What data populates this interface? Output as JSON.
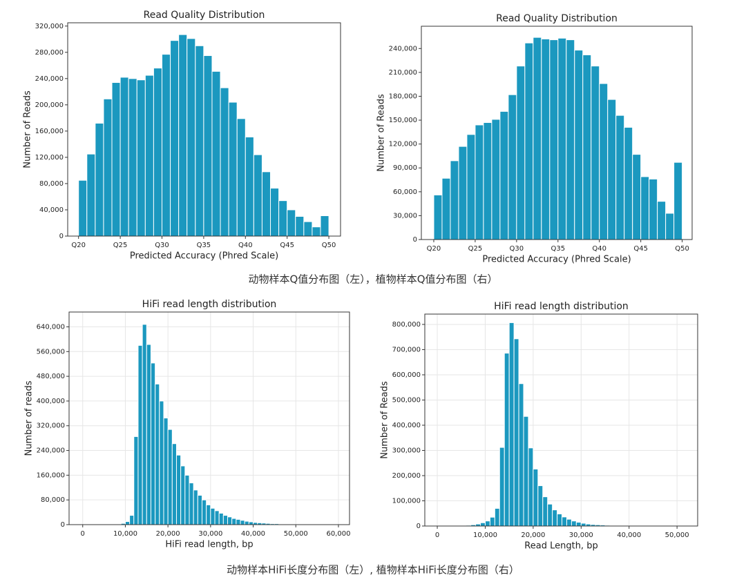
{
  "chart_data": [
    {
      "type": "histogram",
      "title": "Read Quality Distribution",
      "xlabel": "Predicted Accuracy (Phred Scale)",
      "ylabel": "Number of Reads",
      "bins": [
        20,
        21,
        22,
        23,
        24,
        25,
        26,
        27,
        28,
        29,
        30,
        31,
        32,
        33,
        34,
        35,
        36,
        37,
        38,
        39,
        40,
        41,
        42,
        43,
        44,
        45,
        46,
        47,
        48,
        49,
        50
      ],
      "counts": [
        85000,
        125000,
        172000,
        209000,
        234000,
        242000,
        240000,
        238000,
        245000,
        256000,
        277000,
        298000,
        307000,
        301000,
        290000,
        275000,
        251000,
        226000,
        204000,
        179000,
        151000,
        124000,
        98000,
        73000,
        54000,
        40000,
        30000,
        22000,
        14000,
        31000
      ],
      "color": "#1b98bf",
      "grid": false,
      "xlim": [
        18.7,
        51.4
      ],
      "ylim": [
        0,
        325000
      ],
      "xticks": [
        {
          "value": 20,
          "label": "Q20"
        },
        {
          "value": 25,
          "label": "Q25"
        },
        {
          "value": 30,
          "label": "Q30"
        },
        {
          "value": 35,
          "label": "Q35"
        },
        {
          "value": 40,
          "label": "Q40"
        },
        {
          "value": 45,
          "label": "Q45"
        },
        {
          "value": 50,
          "label": "Q50"
        }
      ],
      "yticks": [
        0,
        {
          "value": 40000,
          "label": "40,000"
        },
        {
          "value": 80000,
          "label": "80,000"
        },
        {
          "value": 120000,
          "label": "120,000"
        },
        {
          "value": 160000,
          "label": "160,000"
        },
        {
          "value": 200000,
          "label": "200,000"
        },
        {
          "value": 240000,
          "label": "240,000"
        },
        {
          "value": 280000,
          "label": "280,000"
        },
        {
          "value": 320000,
          "label": "320,000"
        }
      ]
    },
    {
      "type": "histogram",
      "title": "Read Quality Distribution",
      "xlabel": "Predicted Accuracy (Phred Scale)",
      "ylabel": "Number of Reads",
      "bins": [
        20,
        21,
        22,
        23,
        24,
        25,
        26,
        27,
        28,
        29,
        30,
        31,
        32,
        33,
        34,
        35,
        36,
        37,
        38,
        39,
        40,
        41,
        42,
        43,
        44,
        45,
        46,
        47,
        48,
        49,
        50
      ],
      "counts": [
        56000,
        77000,
        99000,
        117000,
        132000,
        144000,
        147000,
        151000,
        161000,
        182000,
        218000,
        247000,
        254000,
        252000,
        251000,
        253000,
        251000,
        238000,
        232000,
        218000,
        196000,
        176000,
        156000,
        141000,
        107000,
        79000,
        76000,
        48000,
        33000,
        97000
      ],
      "color": "#1b98bf",
      "grid": false,
      "xlim": [
        18.5,
        51.2
      ],
      "ylim": [
        0,
        268000
      ],
      "xticks": [
        {
          "value": 20,
          "label": "Q20"
        },
        {
          "value": 25,
          "label": "Q25"
        },
        {
          "value": 30,
          "label": "Q30"
        },
        {
          "value": 35,
          "label": "Q35"
        },
        {
          "value": 40,
          "label": "Q40"
        },
        {
          "value": 45,
          "label": "Q45"
        },
        {
          "value": 50,
          "label": "Q50"
        }
      ],
      "yticks": [
        0,
        {
          "value": 30000,
          "label": "30,000"
        },
        {
          "value": 60000,
          "label": "60,000"
        },
        {
          "value": 90000,
          "label": "90,000"
        },
        {
          "value": 120000,
          "label": "120,000"
        },
        {
          "value": 150000,
          "label": "150,000"
        },
        {
          "value": 180000,
          "label": "180,000"
        },
        {
          "value": 210000,
          "label": "210,000"
        },
        {
          "value": 240000,
          "label": "240,000"
        }
      ]
    },
    {
      "type": "histogram",
      "title": "HiFi read length distribution",
      "xlabel": "HiFi read length, bp",
      "ylabel": "Number of reads",
      "bins": [
        0,
        1000,
        2000,
        3000,
        4000,
        5000,
        6000,
        7000,
        8000,
        9000,
        10000,
        11000,
        12000,
        13000,
        14000,
        15000,
        16000,
        17000,
        18000,
        19000,
        20000,
        21000,
        22000,
        23000,
        24000,
        25000,
        26000,
        27000,
        28000,
        29000,
        30000,
        31000,
        32000,
        33000,
        34000,
        35000,
        36000,
        37000,
        38000,
        39000,
        40000,
        41000,
        42000,
        43000,
        44000,
        45000,
        46000,
        47000,
        48000,
        49000,
        50000,
        51000,
        52000,
        53000,
        54000,
        55000,
        56000,
        57000,
        58000,
        59000,
        60000
      ],
      "counts": [
        0,
        0,
        0,
        0,
        0,
        1000,
        1000,
        1000,
        2000,
        4000,
        10000,
        30000,
        285000,
        580000,
        648000,
        583000,
        523000,
        455000,
        400000,
        345000,
        308000,
        262000,
        225000,
        190000,
        160000,
        135000,
        112000,
        95000,
        80000,
        64000,
        53000,
        45000,
        37000,
        30000,
        25000,
        20000,
        17000,
        14000,
        11000,
        9000,
        7000,
        6000,
        5000,
        4000,
        3000,
        3000,
        2000,
        2000,
        1000,
        1000,
        1000,
        1000,
        0,
        0,
        0,
        0,
        0,
        0,
        0,
        0
      ],
      "color": "#1b98bf",
      "grid": true,
      "xlim": [
        -3200,
        62600
      ],
      "ylim": [
        0,
        688000
      ],
      "xticks": [
        0,
        {
          "value": 10000,
          "label": "10,000"
        },
        {
          "value": 20000,
          "label": "20,000"
        },
        {
          "value": 30000,
          "label": "30,000"
        },
        {
          "value": 40000,
          "label": "40,000"
        },
        {
          "value": 50000,
          "label": "50,000"
        },
        {
          "value": 60000,
          "label": "60,000"
        }
      ],
      "yticks": [
        0,
        {
          "value": 80000,
          "label": "80,000"
        },
        {
          "value": 160000,
          "label": "160,000"
        },
        {
          "value": 240000,
          "label": "240,000"
        },
        {
          "value": 320000,
          "label": "320,000"
        },
        {
          "value": 400000,
          "label": "400,000"
        },
        {
          "value": 480000,
          "label": "480,000"
        },
        {
          "value": 560000,
          "label": "560,000"
        },
        {
          "value": 640000,
          "label": "640,000"
        }
      ]
    },
    {
      "type": "histogram",
      "title": "HiFi read length distribution",
      "xlabel": "Read Length, bp",
      "ylabel": "Number of Reads",
      "bins": [
        0,
        1000,
        2000,
        3000,
        4000,
        5000,
        6000,
        7000,
        8000,
        9000,
        10000,
        11000,
        12000,
        13000,
        14000,
        15000,
        16000,
        17000,
        18000,
        19000,
        20000,
        21000,
        22000,
        23000,
        24000,
        25000,
        26000,
        27000,
        28000,
        29000,
        30000,
        31000,
        32000,
        33000,
        34000,
        35000,
        36000,
        37000,
        38000,
        39000,
        40000,
        41000,
        42000,
        43000,
        44000,
        45000,
        46000,
        47000,
        48000,
        49000,
        50000
      ],
      "counts": [
        0,
        0,
        0,
        0,
        1000,
        2000,
        3000,
        5000,
        8000,
        13000,
        20000,
        35000,
        70000,
        312000,
        686000,
        807000,
        743000,
        565000,
        435000,
        310000,
        226000,
        160000,
        116000,
        87000,
        64000,
        48000,
        36000,
        27000,
        20000,
        15000,
        11000,
        8000,
        6000,
        5000,
        4000,
        3000,
        2000,
        2000,
        1000,
        1000,
        1000,
        0,
        0,
        0,
        0,
        0,
        0,
        0,
        0,
        0
      ],
      "color": "#1b98bf",
      "grid": true,
      "xlim": [
        -2600,
        54300
      ],
      "ylim": [
        0,
        841000
      ],
      "xticks": [
        0,
        {
          "value": 10000,
          "label": "10,000"
        },
        {
          "value": 20000,
          "label": "20,000"
        },
        {
          "value": 30000,
          "label": "30,000"
        },
        {
          "value": 40000,
          "label": "40,000"
        },
        {
          "value": 50000,
          "label": "50,000"
        }
      ],
      "yticks": [
        0,
        {
          "value": 100000,
          "label": "100,000"
        },
        {
          "value": 200000,
          "label": "200,000"
        },
        {
          "value": 300000,
          "label": "300,000"
        },
        {
          "value": 400000,
          "label": "400,000"
        },
        {
          "value": 500000,
          "label": "500,000"
        },
        {
          "value": 600000,
          "label": "600,000"
        },
        {
          "value": 700000,
          "label": "700,000"
        },
        {
          "value": 800000,
          "label": "800,000"
        }
      ]
    }
  ],
  "captions": [
    "动物样本Q值分布图（左），植物样本Q值分布图（右）",
    "动物样本HiFi长度分布图（左）, 植物样本HiFi长度分布图（右）"
  ]
}
